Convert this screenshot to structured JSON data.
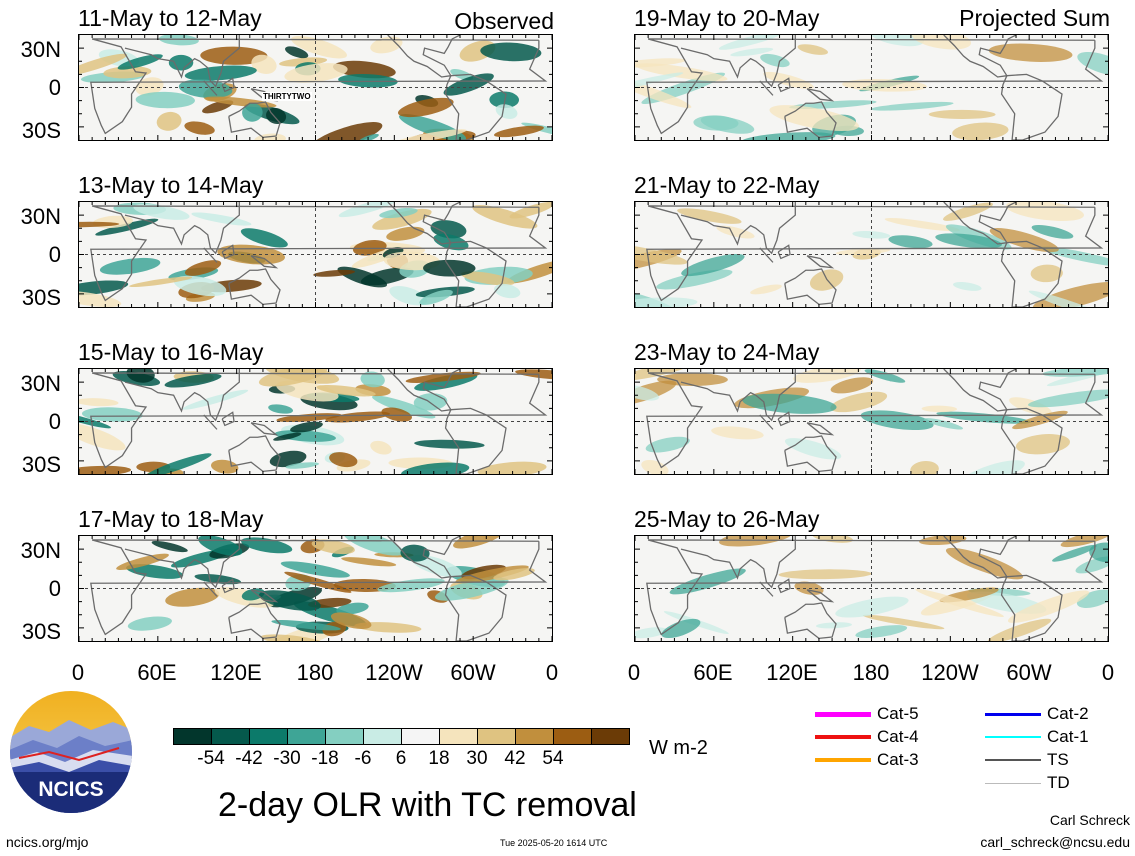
{
  "observed_label": "Observed",
  "projected_label": "Projected Sum",
  "panels_left": [
    {
      "title": "11-May to 12-May",
      "tc_label": "THIRTYTWO"
    },
    {
      "title": "13-May to 14-May",
      "tc_label": ""
    },
    {
      "title": "15-May to 16-May",
      "tc_label": ""
    },
    {
      "title": "17-May to 18-May",
      "tc_label": ""
    }
  ],
  "panels_right": [
    {
      "title": "19-May to 20-May"
    },
    {
      "title": "21-May to 22-May"
    },
    {
      "title": "23-May to 24-May"
    },
    {
      "title": "25-May to 26-May"
    }
  ],
  "lat_labels": [
    "30N",
    "0",
    "30S"
  ],
  "lon_labels": [
    "0",
    "60E",
    "120E",
    "180",
    "120W",
    "60W",
    "0"
  ],
  "colorbar": {
    "colors": [
      "#02362c",
      "#05594c",
      "#0c7a6a",
      "#3ea596",
      "#84cfc1",
      "#c9ece5",
      "#f5f5f5",
      "#f5e4bd",
      "#dfc381",
      "#c18f3d",
      "#9c5d12",
      "#6b3b06"
    ],
    "ticks": [
      "-54",
      "-42",
      "-30",
      "-18",
      "-6",
      "6",
      "18",
      "30",
      "42",
      "54"
    ],
    "units": "W m-2"
  },
  "legend": [
    {
      "label": "Cat-5",
      "color": "#ff00ff"
    },
    {
      "label": "Cat-4",
      "color": "#ee1111"
    },
    {
      "label": "Cat-3",
      "color": "#ffa500"
    },
    {
      "label": "Cat-2",
      "color": "#0000ee"
    },
    {
      "label": "Cat-1",
      "color": "#00ffff"
    },
    {
      "label": "TS",
      "color": "#555555"
    },
    {
      "label": "TD",
      "color": "#bbbbbb"
    }
  ],
  "title": "2-day OLR with TC removal",
  "logo_text": "NCICS",
  "footer": {
    "url": "ncics.org/mjo",
    "timestamp": "Tue 2025-05-20 1614 UTC",
    "author": "Carl Schreck",
    "email": "carl_schreck@ncsu.edu"
  }
}
